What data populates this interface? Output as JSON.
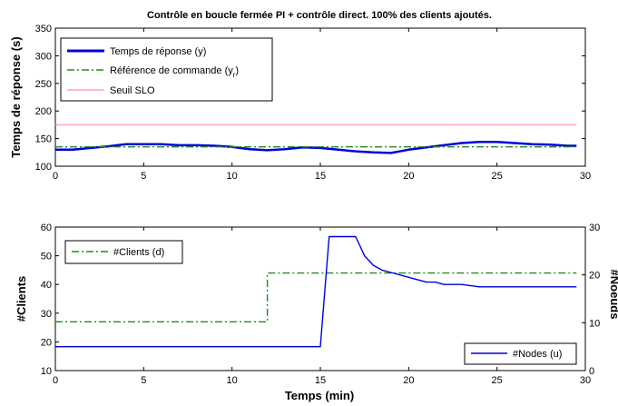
{
  "chart_data": [
    {
      "type": "line",
      "title": "Contrôle en boucle fermée PI + contrôle direct. 100% des clients ajoutés.",
      "xlabel": "",
      "ylabel": "Temps de réponse (s)",
      "xlim": [
        0,
        30
      ],
      "ylim": [
        100,
        350
      ],
      "xticks": [
        "0",
        "5",
        "10",
        "15",
        "20",
        "25",
        "30"
      ],
      "yticks": [
        "100",
        "150",
        "200",
        "250",
        "300",
        "350"
      ],
      "grid": false,
      "legend_position": "top-left",
      "series": [
        {
          "name": "Temps de réponse (y)",
          "color": "#0000dd",
          "style": "solid",
          "x": [
            0,
            1,
            2,
            3,
            4,
            5,
            6,
            7,
            8,
            9,
            10,
            11,
            12,
            13,
            14,
            15,
            16,
            17,
            18,
            19,
            20,
            21,
            22,
            23,
            24,
            25,
            26,
            27,
            28,
            29,
            29.5
          ],
          "y": [
            130,
            130,
            133,
            136,
            140,
            140,
            140,
            138,
            138,
            137,
            135,
            131,
            129,
            131,
            134,
            133,
            130,
            127,
            125,
            124,
            130,
            134,
            138,
            142,
            144,
            144,
            142,
            140,
            139,
            137,
            137
          ]
        },
        {
          "name": "Référence de commande (y",
          "name_subscript": "r",
          "name_suffix": ")",
          "color": "#228b22",
          "style": "dashdot",
          "x": [
            0,
            29.5
          ],
          "y": [
            135,
            135
          ]
        },
        {
          "name": "Seuil SLO",
          "color": "#ff99cc",
          "style": "solid",
          "x": [
            0,
            29.5
          ],
          "y": [
            175,
            175
          ]
        }
      ]
    },
    {
      "type": "line",
      "title": "",
      "xlabel": "Temps (min)",
      "ylabel": "#Clients",
      "y2label": "#Noeuds",
      "xlim": [
        0,
        30
      ],
      "ylim": [
        10,
        60
      ],
      "y2lim": [
        0,
        30
      ],
      "xticks": [
        "0",
        "5",
        "10",
        "15",
        "20",
        "25",
        "30"
      ],
      "yticks": [
        "10",
        "20",
        "30",
        "40",
        "50",
        "60"
      ],
      "y2ticks": [
        "0",
        "10",
        "20",
        "30"
      ],
      "grid": false,
      "series": [
        {
          "name": "#Clients (d)",
          "axis": "left",
          "color": "#228b22",
          "style": "dashdot",
          "legend_position": "top-left",
          "x": [
            0,
            12,
            12,
            29.5
          ],
          "y": [
            27,
            27,
            44,
            44
          ]
        },
        {
          "name": "#Nodes (u)",
          "axis": "right",
          "color": "#0000dd",
          "style": "solid",
          "legend_position": "bottom-right",
          "x": [
            0,
            15,
            15.5,
            16,
            17,
            17.5,
            18,
            18.5,
            19,
            20,
            21,
            21.5,
            22,
            23,
            24,
            25,
            26,
            27,
            28,
            29.5
          ],
          "y": [
            5,
            5,
            28,
            28,
            28,
            24,
            22,
            21,
            20.5,
            19.5,
            18.5,
            18.5,
            18,
            18,
            17.5,
            17.5,
            17.5,
            17.5,
            17.5,
            17.5
          ]
        }
      ]
    }
  ]
}
